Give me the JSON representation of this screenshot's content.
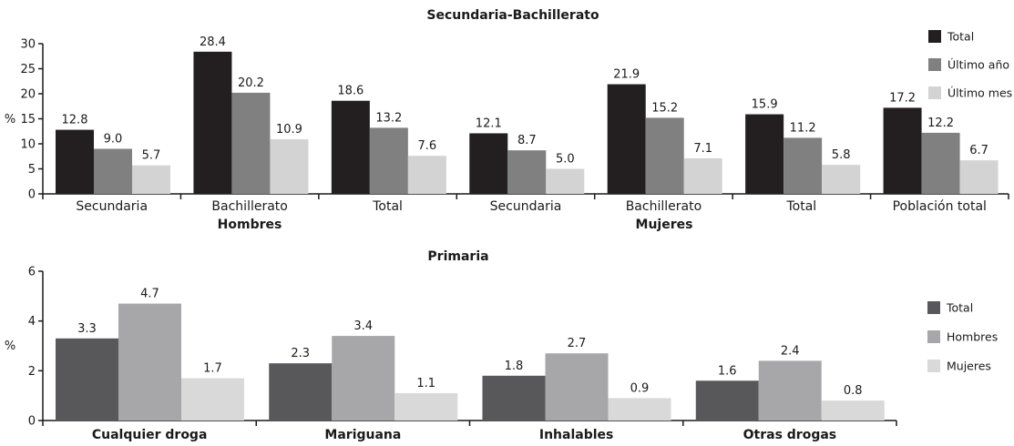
{
  "chart_data": [
    {
      "type": "bar",
      "title": "Secundaria-Bachillerato",
      "ylabel": "%",
      "ylim": [
        0,
        30
      ],
      "yticks": [
        0,
        5,
        10,
        15,
        20,
        25,
        30
      ],
      "categories": [
        "Secundaria",
        "Bachillerato",
        "Total",
        "Secundaria",
        "Bachillerato",
        "Total",
        "Población total"
      ],
      "groups": [
        {
          "label": "Hombres",
          "spans": [
            0,
            2
          ]
        },
        {
          "label": "Mujeres",
          "spans": [
            3,
            5
          ]
        }
      ],
      "series": [
        {
          "name": "Total",
          "color": "#231f20",
          "values": [
            12.8,
            28.4,
            18.6,
            12.1,
            21.9,
            15.9,
            17.2
          ]
        },
        {
          "name": "Último año",
          "color": "#808080",
          "values": [
            9.0,
            20.2,
            13.2,
            8.7,
            15.2,
            11.2,
            12.2
          ]
        },
        {
          "name": "Último mes",
          "color": "#d3d3d3",
          "values": [
            5.7,
            10.9,
            7.6,
            5.0,
            7.1,
            5.8,
            6.7
          ]
        }
      ],
      "legend_position": "right"
    },
    {
      "type": "bar",
      "title": "Primaria",
      "ylabel": "%",
      "ylim": [
        0,
        6
      ],
      "yticks": [
        0,
        2,
        4,
        6
      ],
      "categories": [
        "Cualquier droga",
        "Mariguana",
        "Inhalables",
        "Otras drogas"
      ],
      "series": [
        {
          "name": "Total",
          "color": "#58585a",
          "values": [
            3.3,
            2.3,
            1.8,
            1.6
          ]
        },
        {
          "name": "Hombres",
          "color": "#a7a7a9",
          "values": [
            4.7,
            3.4,
            2.7,
            2.4
          ]
        },
        {
          "name": "Mujeres",
          "color": "#d9d9d9",
          "values": [
            1.7,
            1.1,
            0.9,
            0.8
          ]
        }
      ],
      "legend_position": "right"
    }
  ]
}
